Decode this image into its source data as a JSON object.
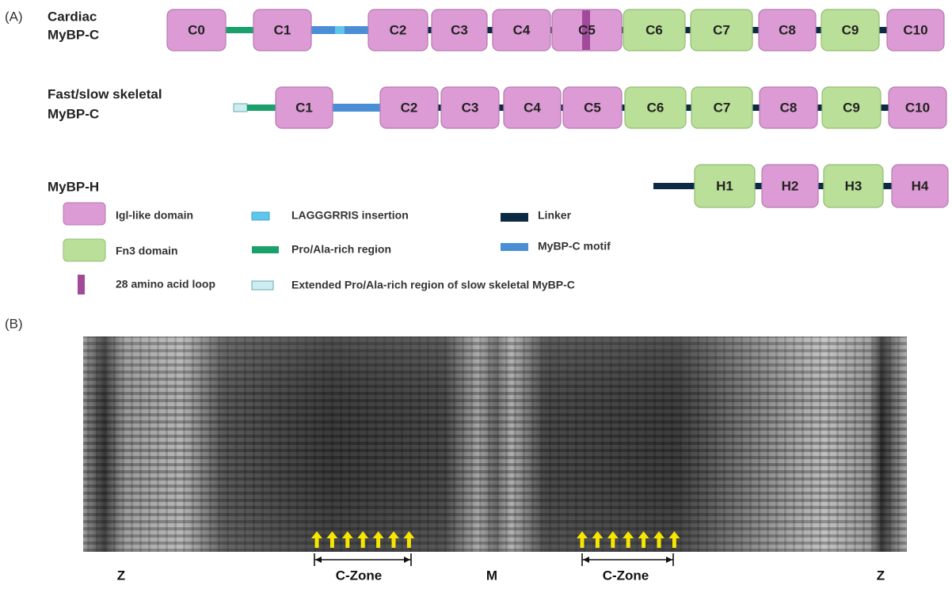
{
  "panel_a": {
    "label": "(A)",
    "rows": [
      {
        "name_lines": [
          "Cardiac",
          "MyBP-C"
        ],
        "domains": [
          "C0",
          "C1",
          "C2",
          "C3",
          "C4",
          "C5",
          "C6",
          "C7",
          "C8",
          "C9",
          "C10"
        ]
      },
      {
        "name_lines": [
          "Fast/slow skeletal",
          "MyBP-C"
        ],
        "domains": [
          "C1",
          "C2",
          "C3",
          "C4",
          "C5",
          "C6",
          "C7",
          "C8",
          "C9",
          "C10"
        ]
      },
      {
        "name_lines": [
          "MyBP-H"
        ],
        "domains": [
          "H1",
          "H2",
          "H3",
          "H4"
        ]
      }
    ],
    "legend": [
      "Igl-like domain",
      "Fn3 domain",
      "28 amino acid loop",
      "LAGGGRRIS insertion",
      "Pro/Ala-rich region",
      "Extended Pro/Ala-rich region of slow skeletal MyBP-C",
      "Linker",
      "MyBP-C motif"
    ]
  },
  "panel_b": {
    "label": "(B)",
    "labels": [
      "Z",
      "C-Zone",
      "M",
      "C-Zone",
      "Z"
    ]
  }
}
